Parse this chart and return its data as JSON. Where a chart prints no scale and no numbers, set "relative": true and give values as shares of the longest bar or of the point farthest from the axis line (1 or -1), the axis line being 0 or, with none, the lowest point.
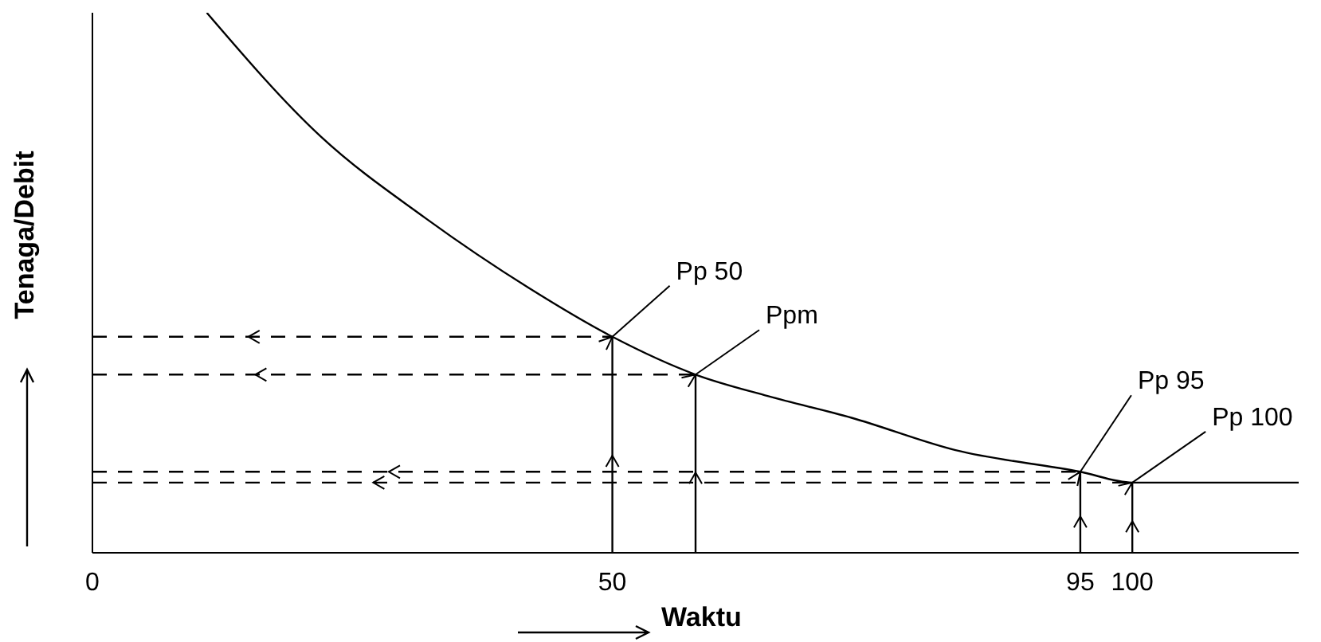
{
  "chart_data": {
    "type": "line",
    "relative": true,
    "xlabel": "Waktu",
    "ylabel": "Tenaga/Debit",
    "xlim": [
      0,
      116
    ],
    "xticks": [
      0,
      50,
      95,
      100
    ],
    "tick_labels": "x",
    "grid": false,
    "legend": false,
    "series": [
      {
        "type": "line",
        "color": "#000000",
        "line_style": "solid",
        "x": [
          11,
          22,
          32,
          42,
          50,
          58,
          65,
          73,
          83,
          95,
          100,
          116
        ],
        "values": [
          1.0,
          0.77,
          0.62,
          0.49,
          0.4,
          0.33,
          0.29,
          0.25,
          0.19,
          0.15,
          0.13,
          0.13
        ]
      },
      {
        "type": "line",
        "color": "#000000",
        "line_style": "dashed",
        "x": [
          0,
          50
        ],
        "values": [
          0.4,
          0.4
        ]
      },
      {
        "type": "line",
        "color": "#000000",
        "line_style": "dashed",
        "x": [
          0,
          58
        ],
        "values": [
          0.33,
          0.33
        ]
      },
      {
        "type": "line",
        "color": "#000000",
        "line_style": "dashed",
        "x": [
          0,
          95
        ],
        "values": [
          0.15,
          0.15
        ]
      },
      {
        "type": "line",
        "color": "#000000",
        "line_style": "dashed",
        "x": [
          0,
          100
        ],
        "values": [
          0.13,
          0.13
        ]
      },
      {
        "type": "line",
        "color": "#000000",
        "line_style": "solid",
        "x": [
          50,
          50
        ],
        "values": [
          0,
          0.4
        ]
      },
      {
        "type": "line",
        "color": "#000000",
        "line_style": "solid",
        "x": [
          58,
          58
        ],
        "values": [
          0,
          0.33
        ]
      },
      {
        "type": "line",
        "color": "#000000",
        "line_style": "solid",
        "x": [
          95,
          95
        ],
        "values": [
          0,
          0.15
        ]
      },
      {
        "type": "line",
        "color": "#000000",
        "line_style": "solid",
        "x": [
          100,
          100
        ],
        "values": [
          0,
          0.13
        ]
      }
    ],
    "annotations": [
      {
        "text": "Pp 50",
        "x": 50,
        "y": 0.4
      },
      {
        "text": "Ppm",
        "x": 58,
        "y": 0.33
      },
      {
        "text": "Pp 95",
        "x": 95,
        "y": 0.15
      },
      {
        "text": "Pp 100",
        "x": 100,
        "y": 0.13
      }
    ]
  }
}
